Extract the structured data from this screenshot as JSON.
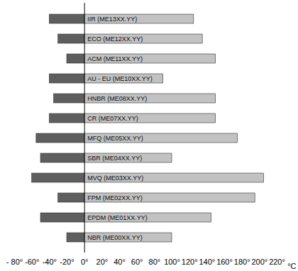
{
  "chart_data": {
    "type": "bar",
    "orientation": "horizontal",
    "categories": [
      "IIR (ME13XX.YY)",
      "ECO (ME12XX.YY)",
      "ACM (ME11XX.YY)",
      "AU - EU (ME10XX.YY)",
      "HNBR (ME08XX.YY)",
      "CR (ME07XX.YY)",
      "MFQ (ME05XX.YY)",
      "SBR (ME04XX.YY)",
      "MVQ (ME03XX.YY)",
      "FPM (ME02XX.YY)",
      "EPDM (ME01XX.YY)",
      "NBR (ME00XX.YY)"
    ],
    "values": [
      [
        -40,
        125
      ],
      [
        -30,
        135
      ],
      [
        -20,
        150
      ],
      [
        -40,
        90
      ],
      [
        -35,
        150
      ],
      [
        -40,
        150
      ],
      [
        -55,
        175
      ],
      [
        -50,
        100
      ],
      [
        -60,
        205
      ],
      [
        -30,
        195
      ],
      [
        -50,
        145
      ],
      [
        -20,
        100
      ]
    ],
    "colors": [
      "#5e5e5e",
      "#c2c2c2"
    ],
    "xlabel": "°C",
    "xlim": [
      -80,
      220
    ],
    "xticks": [
      {
        "value": -80,
        "label": "- 80°"
      },
      {
        "value": -60,
        "label": "-60°"
      },
      {
        "value": -40,
        "label": "-40°"
      },
      {
        "value": -20,
        "label": "-20°"
      },
      {
        "value": 0,
        "label": "0°"
      },
      {
        "value": 20,
        "label": "20°"
      },
      {
        "value": 40,
        "label": "40°"
      },
      {
        "value": 60,
        "label": "60°"
      },
      {
        "value": 80,
        "label": "80°"
      },
      {
        "value": 100,
        "label": "100°"
      },
      {
        "value": 120,
        "label": "120°"
      },
      {
        "value": 140,
        "label": "140°"
      },
      {
        "value": 160,
        "label": "160°"
      },
      {
        "value": 180,
        "label": "180°"
      },
      {
        "value": 200,
        "label": "200°"
      },
      {
        "value": 220,
        "label": "220°"
      }
    ],
    "grid": false,
    "tick_labels": "x"
  }
}
